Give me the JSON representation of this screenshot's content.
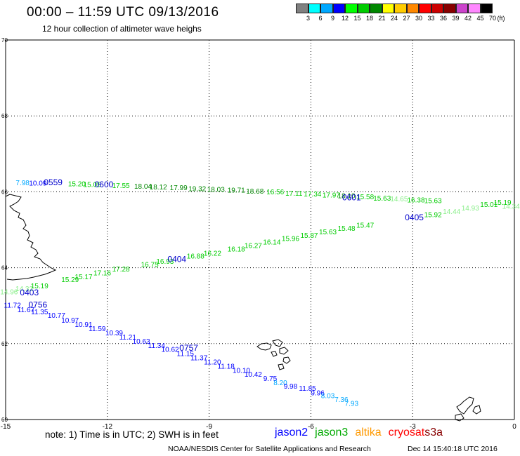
{
  "header": {
    "title": "00:00 – 11:59 UTC 09/13/2016",
    "subtitle": "12 hour collection of altimeter wave heighs"
  },
  "legend": {
    "unit": "(ft)",
    "bins": [
      {
        "label": "3",
        "color": "#808080"
      },
      {
        "label": "6",
        "color": "#00ffff"
      },
      {
        "label": "9",
        "color": "#00a8ff"
      },
      {
        "label": "12",
        "color": "#0000ff"
      },
      {
        "label": "15",
        "color": "#00ff00"
      },
      {
        "label": "18",
        "color": "#00cc00"
      },
      {
        "label": "21",
        "color": "#008800"
      },
      {
        "label": "24",
        "color": "#ffff00"
      },
      {
        "label": "27",
        "color": "#ffcc00"
      },
      {
        "label": "30",
        "color": "#ff8800"
      },
      {
        "label": "33",
        "color": "#ff0000"
      },
      {
        "label": "36",
        "color": "#cc0000"
      },
      {
        "label": "39",
        "color": "#880000"
      },
      {
        "label": "42",
        "color": "#cc44cc"
      },
      {
        "label": "45",
        "color": "#ff88ff"
      },
      {
        "label": "70",
        "color": "#000000"
      }
    ]
  },
  "map": {
    "lon_range": [
      -15,
      0
    ],
    "lat_range": [
      60,
      70
    ],
    "x_ticks": [
      "-15",
      "-12",
      "-9",
      "-6",
      "-3",
      "0"
    ],
    "y_ticks": [
      "60",
      "62",
      "64",
      "66",
      "68",
      "70"
    ],
    "tracks": [
      {
        "mission": "jason3",
        "time_labels": [
          {
            "text": "0559",
            "lon": -13.6,
            "lat": 66.17
          },
          {
            "text": "0600",
            "lon": -12.1,
            "lat": 66.12
          },
          {
            "text": "0601",
            "lon": -4.8,
            "lat": 65.78
          }
        ],
        "points": [
          {
            "v": "7.98",
            "lon": -14.5,
            "lat": 66.17,
            "c": "#00a8ff"
          },
          {
            "v": "10.09",
            "lon": -14.05,
            "lat": 66.16,
            "c": "#0000ff"
          },
          {
            "v": "15.20",
            "lon": -12.9,
            "lat": 66.15,
            "c": "#00cc00"
          },
          {
            "v": "15.05",
            "lon": -12.45,
            "lat": 66.13,
            "c": "#00cc00"
          },
          {
            "v": "17.55",
            "lon": -11.6,
            "lat": 66.1,
            "c": "#00cc00"
          },
          {
            "v": "18.04",
            "lon": -10.95,
            "lat": 66.08,
            "c": "#008800"
          },
          {
            "v": "18.12",
            "lon": -10.5,
            "lat": 66.06,
            "c": "#008800"
          },
          {
            "v": "17.99",
            "lon": -9.9,
            "lat": 66.04,
            "c": "#008800"
          },
          {
            "v": "19.32",
            "lon": -9.35,
            "lat": 66.02,
            "c": "#008800"
          },
          {
            "v": "18.03",
            "lon": -8.8,
            "lat": 66.0,
            "c": "#008800"
          },
          {
            "v": "19.71",
            "lon": -8.2,
            "lat": 65.98,
            "c": "#008800"
          },
          {
            "v": "18.68",
            "lon": -7.65,
            "lat": 65.95,
            "c": "#008800"
          },
          {
            "v": "16.56",
            "lon": -7.05,
            "lat": 65.93,
            "c": "#00cc00"
          },
          {
            "v": "17.11",
            "lon": -6.5,
            "lat": 65.9,
            "c": "#00cc00"
          },
          {
            "v": "17.34",
            "lon": -5.95,
            "lat": 65.88,
            "c": "#00cc00"
          },
          {
            "v": "17.97",
            "lon": -5.4,
            "lat": 65.85,
            "c": "#00cc00"
          },
          {
            "v": "18.10",
            "lon": -4.95,
            "lat": 65.83,
            "c": "#008800"
          },
          {
            "v": "15.58",
            "lon": -4.4,
            "lat": 65.8,
            "c": "#00cc00"
          },
          {
            "v": "15.63",
            "lon": -3.9,
            "lat": 65.77,
            "c": "#00cc00"
          },
          {
            "v": "14.65",
            "lon": -3.4,
            "lat": 65.75,
            "c": "#88ee88"
          },
          {
            "v": "16.38",
            "lon": -2.9,
            "lat": 65.72,
            "c": "#00cc00"
          },
          {
            "v": "15.63",
            "lon": -2.4,
            "lat": 65.7,
            "c": "#00cc00"
          }
        ]
      },
      {
        "mission": "jason3",
        "time_labels": [
          {
            "text": "0403",
            "lon": -14.3,
            "lat": 63.27
          },
          {
            "text": "0404",
            "lon": -9.95,
            "lat": 64.15
          },
          {
            "text": "0405",
            "lon": -2.95,
            "lat": 65.25
          }
        ],
        "points": [
          {
            "v": "14.96",
            "lon": -14.9,
            "lat": 63.3,
            "c": "#88ee88"
          },
          {
            "v": "14.32",
            "lon": -14.45,
            "lat": 63.38,
            "c": "#88ee88"
          },
          {
            "v": "15.19",
            "lon": -14.0,
            "lat": 63.46,
            "c": "#00cc00"
          },
          {
            "v": "15.29",
            "lon": -13.1,
            "lat": 63.62,
            "c": "#00cc00"
          },
          {
            "v": "15.17",
            "lon": -12.7,
            "lat": 63.7,
            "c": "#00cc00"
          },
          {
            "v": "17.16",
            "lon": -12.15,
            "lat": 63.8,
            "c": "#00cc00"
          },
          {
            "v": "17.28",
            "lon": -11.6,
            "lat": 63.9,
            "c": "#00cc00"
          },
          {
            "v": "16.75",
            "lon": -10.75,
            "lat": 64.02,
            "c": "#00cc00"
          },
          {
            "v": "16.93",
            "lon": -10.3,
            "lat": 64.1,
            "c": "#00cc00"
          },
          {
            "v": "16.88",
            "lon": -9.4,
            "lat": 64.24,
            "c": "#00cc00"
          },
          {
            "v": "16.22",
            "lon": -8.9,
            "lat": 64.32,
            "c": "#00cc00"
          },
          {
            "v": "16.18",
            "lon": -8.2,
            "lat": 64.43,
            "c": "#00cc00"
          },
          {
            "v": "16.27",
            "lon": -7.7,
            "lat": 64.52,
            "c": "#00cc00"
          },
          {
            "v": "16.14",
            "lon": -7.15,
            "lat": 64.61,
            "c": "#00cc00"
          },
          {
            "v": "15.96",
            "lon": -6.6,
            "lat": 64.7,
            "c": "#00cc00"
          },
          {
            "v": "15.87",
            "lon": -6.05,
            "lat": 64.79,
            "c": "#00cc00"
          },
          {
            "v": "15.63",
            "lon": -5.5,
            "lat": 64.88,
            "c": "#00cc00"
          },
          {
            "v": "15.48",
            "lon": -4.95,
            "lat": 64.97,
            "c": "#00cc00"
          },
          {
            "v": "15.47",
            "lon": -4.4,
            "lat": 65.06,
            "c": "#00cc00"
          },
          {
            "v": "15.92",
            "lon": -2.4,
            "lat": 65.33,
            "c": "#00cc00"
          },
          {
            "v": "14.44",
            "lon": -1.85,
            "lat": 65.42,
            "c": "#88ee88"
          },
          {
            "v": "14.93",
            "lon": -1.3,
            "lat": 65.51,
            "c": "#88ee88"
          },
          {
            "v": "15.01",
            "lon": -0.75,
            "lat": 65.6,
            "c": "#00cc00"
          },
          {
            "v": "15.19",
            "lon": -0.35,
            "lat": 65.66,
            "c": "#00cc00"
          },
          {
            "v": "14.34",
            "lon": -0.1,
            "lat": 65.55,
            "c": "#88ee88"
          }
        ]
      },
      {
        "mission": "jason2",
        "time_labels": [
          {
            "text": "0756",
            "lon": -14.05,
            "lat": 62.95
          },
          {
            "text": "0757",
            "lon": -9.6,
            "lat": 61.81
          }
        ],
        "points": [
          {
            "v": "11.72",
            "lon": -14.8,
            "lat": 62.95,
            "c": "#0000ff"
          },
          {
            "v": "11.67",
            "lon": -14.4,
            "lat": 62.83,
            "c": "#0000ff"
          },
          {
            "v": "11.35",
            "lon": -14.0,
            "lat": 62.77,
            "c": "#0000ff"
          },
          {
            "v": "10.77",
            "lon": -13.5,
            "lat": 62.68,
            "c": "#0000ff"
          },
          {
            "v": "10.97",
            "lon": -13.1,
            "lat": 62.55,
            "c": "#0000ff"
          },
          {
            "v": "10.91",
            "lon": -12.7,
            "lat": 62.44,
            "c": "#0000ff"
          },
          {
            "v": "11.59",
            "lon": -12.3,
            "lat": 62.33,
            "c": "#0000ff"
          },
          {
            "v": "10.39",
            "lon": -11.8,
            "lat": 62.22,
            "c": "#0000ff"
          },
          {
            "v": "11.21",
            "lon": -11.4,
            "lat": 62.11,
            "c": "#0000ff"
          },
          {
            "v": "10.63",
            "lon": -11.0,
            "lat": 62.0,
            "c": "#0000ff"
          },
          {
            "v": "11.34",
            "lon": -10.55,
            "lat": 61.89,
            "c": "#0000ff"
          },
          {
            "v": "10.62",
            "lon": -10.15,
            "lat": 61.78,
            "c": "#0000ff"
          },
          {
            "v": "11.15",
            "lon": -9.7,
            "lat": 61.67,
            "c": "#0000ff"
          },
          {
            "v": "11.37",
            "lon": -9.3,
            "lat": 61.56,
            "c": "#0000ff"
          },
          {
            "v": "11.20",
            "lon": -8.9,
            "lat": 61.45,
            "c": "#0000ff"
          },
          {
            "v": "11.18",
            "lon": -8.5,
            "lat": 61.34,
            "c": "#0000ff"
          },
          {
            "v": "10.10",
            "lon": -8.05,
            "lat": 61.23,
            "c": "#0000ff"
          },
          {
            "v": "10.42",
            "lon": -7.7,
            "lat": 61.13,
            "c": "#0000ff"
          },
          {
            "v": "9.75",
            "lon": -7.2,
            "lat": 61.02,
            "c": "#0000ff"
          },
          {
            "v": "8.20",
            "lon": -6.9,
            "lat": 60.91,
            "c": "#00a8ff"
          },
          {
            "v": "9.98",
            "lon": -6.6,
            "lat": 60.81,
            "c": "#0000ff"
          },
          {
            "v": "11.85",
            "lon": -6.1,
            "lat": 60.76,
            "c": "#0000ff"
          },
          {
            "v": "9.96",
            "lon": -5.8,
            "lat": 60.64,
            "c": "#0000ff"
          },
          {
            "v": "8.03",
            "lon": -5.5,
            "lat": 60.56,
            "c": "#00a8ff"
          },
          {
            "v": "7.36",
            "lon": -5.1,
            "lat": 60.46,
            "c": "#00a8ff"
          },
          {
            "v": "7.93",
            "lon": -4.8,
            "lat": 60.36,
            "c": "#00a8ff"
          }
        ]
      }
    ]
  },
  "footer": {
    "note": "note: 1) Time is in UTC; 2) SWH is in feet",
    "missions": [
      {
        "name": "jason2",
        "color": "#0000ff"
      },
      {
        "name": "jason3",
        "color": "#00aa00"
      },
      {
        "name": "altika",
        "color": "#ff9900"
      },
      {
        "name": "cryosat",
        "color": "#ff0000"
      },
      {
        "name": "s3a",
        "color": "#880000"
      }
    ],
    "credit": "NOAA/NESDIS Center for Satellite Applications and Research",
    "timestamp": "Dec 14 15:40:18 UTC 2016"
  }
}
